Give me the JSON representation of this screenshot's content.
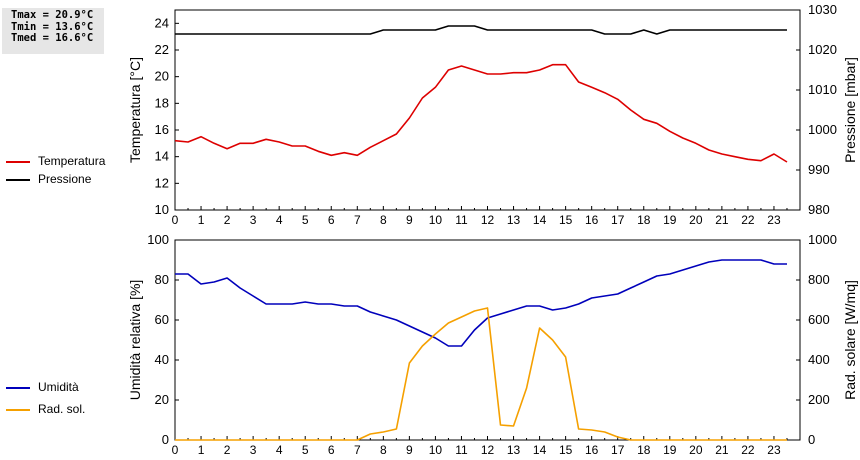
{
  "stats": {
    "tmax": "Tmax = 20.9°C",
    "tmin": "Tmin = 13.6°C",
    "tmed": "Tmed = 16.6°C"
  },
  "legend_top": [
    {
      "label": "Temperatura",
      "color": "#dd0000"
    },
    {
      "label": "Pressione",
      "color": "#000000"
    }
  ],
  "legend_bottom": [
    {
      "label": "Umidità",
      "color": "#0000bb"
    },
    {
      "label": "Rad. sol.",
      "color": "#f5a000"
    }
  ],
  "chart_data": [
    {
      "type": "line",
      "x": [
        0,
        0.5,
        1,
        1.5,
        2,
        2.5,
        3,
        3.5,
        4,
        4.5,
        5,
        5.5,
        6,
        6.5,
        7,
        7.5,
        8,
        8.5,
        9,
        9.5,
        10,
        10.5,
        11,
        11.5,
        12,
        12.5,
        13,
        13.5,
        14,
        14.5,
        15,
        15.5,
        16,
        16.5,
        17,
        17.5,
        18,
        18.5,
        19,
        19.5,
        20,
        20.5,
        21,
        21.5,
        22,
        22.5,
        23,
        23.5
      ],
      "xticks": [
        "0",
        "1",
        "2",
        "3",
        "4",
        "5",
        "6",
        "7",
        "8",
        "9",
        "10",
        "11",
        "12",
        "13",
        "14",
        "15",
        "16",
        "17",
        "18",
        "19",
        "20",
        "21",
        "22",
        "23"
      ],
      "xlim": [
        0,
        24
      ],
      "ylabel": "Temperatura [°C]",
      "ylim": [
        10,
        25
      ],
      "yticks": [
        "10",
        "12",
        "14",
        "16",
        "18",
        "20",
        "22",
        "24"
      ],
      "y2label": "Pressione [mbar]",
      "y2lim": [
        980,
        1030
      ],
      "y2ticks": [
        "980",
        "990",
        "1000",
        "1010",
        "1020",
        "1030"
      ],
      "grid": false,
      "series": [
        {
          "name": "Temperatura",
          "axis": "left",
          "color": "#dd0000",
          "values": [
            15.2,
            15.1,
            15.5,
            15.0,
            14.6,
            15.0,
            15.0,
            15.3,
            15.1,
            14.8,
            14.8,
            14.4,
            14.1,
            14.3,
            14.1,
            14.7,
            15.2,
            15.7,
            16.9,
            18.4,
            19.2,
            20.5,
            20.8,
            20.5,
            20.2,
            20.2,
            20.3,
            20.3,
            20.5,
            20.9,
            20.9,
            19.6,
            19.2,
            18.8,
            18.3,
            17.5,
            16.8,
            16.5,
            15.9,
            15.4,
            15.0,
            14.5,
            14.2,
            14.0,
            13.8,
            13.7,
            14.2,
            13.6
          ]
        },
        {
          "name": "Pressione",
          "axis": "right",
          "color": "#000000",
          "values": [
            1024,
            1024,
            1024,
            1024,
            1024,
            1024,
            1024,
            1024,
            1024,
            1024,
            1024,
            1024,
            1024,
            1024,
            1024,
            1024,
            1025,
            1025,
            1025,
            1025,
            1025,
            1026,
            1026,
            1026,
            1025,
            1025,
            1025,
            1025,
            1025,
            1025,
            1025,
            1025,
            1025,
            1024,
            1024,
            1024,
            1025,
            1024,
            1025,
            1025,
            1025,
            1025,
            1025,
            1025,
            1025,
            1025,
            1025,
            1025
          ]
        }
      ]
    },
    {
      "type": "line",
      "x": [
        0,
        0.5,
        1,
        1.5,
        2,
        2.5,
        3,
        3.5,
        4,
        4.5,
        5,
        5.5,
        6,
        6.5,
        7,
        7.5,
        8,
        8.5,
        9,
        9.5,
        10,
        10.5,
        11,
        11.5,
        12,
        12.5,
        13,
        13.5,
        14,
        14.5,
        15,
        15.5,
        16,
        16.5,
        17,
        17.5,
        18,
        18.5,
        19,
        19.5,
        20,
        20.5,
        21,
        21.5,
        22,
        22.5,
        23,
        23.5
      ],
      "xticks": [
        "0",
        "1",
        "2",
        "3",
        "4",
        "5",
        "6",
        "7",
        "8",
        "9",
        "10",
        "11",
        "12",
        "13",
        "14",
        "15",
        "16",
        "17",
        "18",
        "19",
        "20",
        "21",
        "22",
        "23"
      ],
      "xlim": [
        0,
        24
      ],
      "ylabel": "Umidità relativa [%]",
      "ylim": [
        0,
        100
      ],
      "yticks": [
        "0",
        "20",
        "40",
        "60",
        "80",
        "100"
      ],
      "y2label": "Rad. solare [W/mq]",
      "y2lim": [
        0,
        1000
      ],
      "y2ticks": [
        "0",
        "200",
        "400",
        "600",
        "800",
        "1000"
      ],
      "grid": false,
      "series": [
        {
          "name": "Umidità",
          "axis": "left",
          "color": "#0000bb",
          "values": [
            83,
            83,
            78,
            79,
            81,
            76,
            72,
            68,
            68,
            68,
            69,
            68,
            68,
            67,
            67,
            64,
            62,
            60,
            57,
            54,
            51,
            47,
            47,
            55,
            61,
            63,
            65,
            67,
            67,
            65,
            66,
            68,
            71,
            72,
            73,
            76,
            79,
            82,
            83,
            85,
            87,
            89,
            90,
            90,
            90,
            90,
            88,
            88
          ]
        },
        {
          "name": "Rad. sol.",
          "axis": "right",
          "color": "#f5a000",
          "values": [
            0,
            0,
            0,
            0,
            0,
            0,
            0,
            0,
            0,
            0,
            0,
            0,
            0,
            0,
            0,
            30,
            40,
            55,
            385,
            470,
            530,
            585,
            615,
            645,
            660,
            75,
            70,
            260,
            560,
            500,
            415,
            55,
            50,
            40,
            15,
            0,
            0,
            0,
            0,
            0,
            0,
            0,
            0,
            0,
            0,
            0,
            0,
            0
          ]
        }
      ]
    }
  ]
}
